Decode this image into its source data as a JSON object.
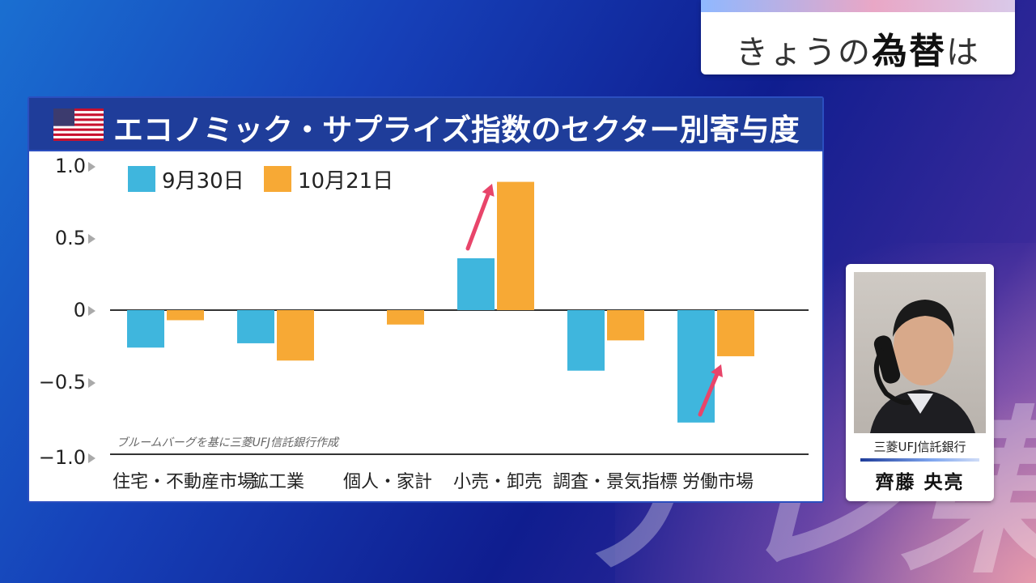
{
  "corner": {
    "title_prefix": "きょうの",
    "title_emph": "為替",
    "title_suffix": "は"
  },
  "watermark": "テレ東",
  "panel": {
    "title": "エコノミック・サプライズ指数のセクター別寄与度",
    "flag": "us-flag-icon"
  },
  "source_note": "ブルームバーグを基に三菱UFJ信託銀行作成",
  "person": {
    "org": "三菱UFJ信託銀行",
    "name": "齊藤 央亮"
  },
  "colors": {
    "series1": "#3fb6dd",
    "series2": "#f7a935",
    "arrow": "#e8456a",
    "header": "#1f3d9a"
  },
  "chart_data": {
    "type": "bar",
    "categories": [
      "住宅・不動産市場",
      "鉱工業",
      "個人・家計",
      "小売・卸売",
      "調査・景気指標",
      "労働市場"
    ],
    "series": [
      {
        "name": "9月30日",
        "values": [
          -0.26,
          -0.23,
          0,
          0.36,
          -0.42,
          -0.78
        ]
      },
      {
        "name": "10月21日",
        "values": [
          -0.07,
          -0.35,
          -0.1,
          0.89,
          -0.21,
          -0.32
        ]
      }
    ],
    "y_ticks": [
      "1.0",
      "0.5",
      "0",
      "−0.5",
      "−1.0"
    ],
    "ylim": [
      -1.0,
      1.0
    ],
    "annotations": [
      "arrow-up 小売・卸売",
      "arrow-up 労働市場"
    ],
    "legend_position": "top-left",
    "grid": false
  }
}
